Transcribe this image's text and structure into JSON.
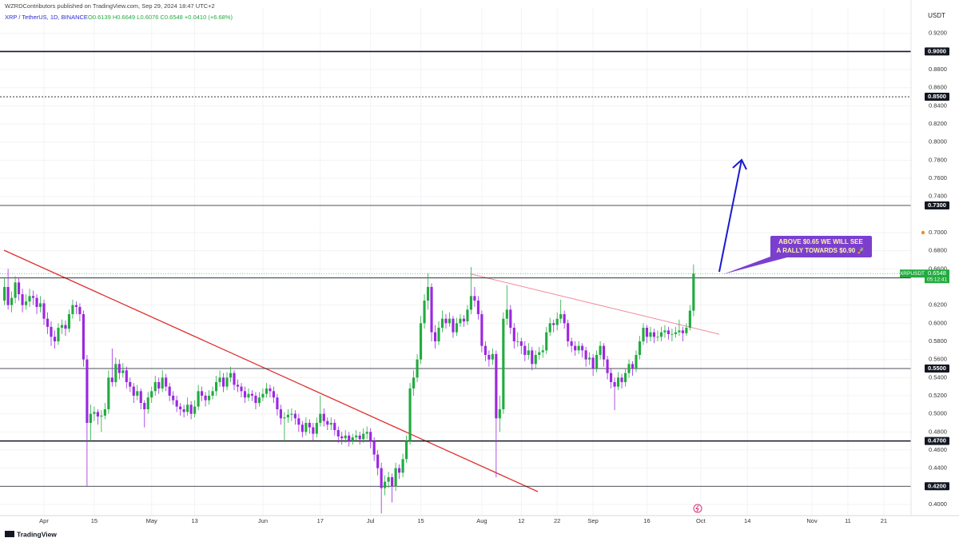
{
  "header": {
    "publisher": "WZRDContributors published on TradingView.com, Sep 29, 2024 18:47 UTC+2",
    "symbol": "XRP / TetherUS, 1D, BINANCE",
    "ohlc": "O0.6139 H0.6649 L0.6076 C0.6548 +0.0410 (+6.68%)"
  },
  "chart_data": {
    "type": "candlestick",
    "y_axis_unit": "USDT",
    "up_color": "#22ab3f",
    "down_color": "#9c27e0",
    "candles": [
      [
        0.625,
        0.65,
        0.62,
        0.64
      ],
      [
        0.64,
        0.66,
        0.615,
        0.62
      ],
      [
        0.62,
        0.635,
        0.612,
        0.628
      ],
      [
        0.628,
        0.652,
        0.622,
        0.645
      ],
      [
        0.645,
        0.65,
        0.625,
        0.632
      ],
      [
        0.632,
        0.638,
        0.612,
        0.62
      ],
      [
        0.62,
        0.632,
        0.615,
        0.624
      ],
      [
        0.624,
        0.638,
        0.618,
        0.63
      ],
      [
        0.63,
        0.636,
        0.62,
        0.628
      ],
      [
        0.628,
        0.632,
        0.61,
        0.618
      ],
      [
        0.618,
        0.63,
        0.612,
        0.622
      ],
      [
        0.622,
        0.626,
        0.598,
        0.605
      ],
      [
        0.605,
        0.612,
        0.588,
        0.596
      ],
      [
        0.596,
        0.602,
        0.575,
        0.585
      ],
      [
        0.585,
        0.592,
        0.572,
        0.58
      ],
      [
        0.58,
        0.6,
        0.576,
        0.595
      ],
      [
        0.595,
        0.604,
        0.588,
        0.598
      ],
      [
        0.598,
        0.603,
        0.586,
        0.594
      ],
      [
        0.594,
        0.615,
        0.59,
        0.61
      ],
      [
        0.61,
        0.626,
        0.605,
        0.62
      ],
      [
        0.62,
        0.624,
        0.61,
        0.618
      ],
      [
        0.618,
        0.622,
        0.602,
        0.61
      ],
      [
        0.61,
        0.614,
        0.552,
        0.56
      ],
      [
        0.56,
        0.565,
        0.42,
        0.49
      ],
      [
        0.49,
        0.51,
        0.47,
        0.5
      ],
      [
        0.5,
        0.508,
        0.492,
        0.502
      ],
      [
        0.502,
        0.505,
        0.488,
        0.497
      ],
      [
        0.497,
        0.504,
        0.48,
        0.498
      ],
      [
        0.498,
        0.512,
        0.494,
        0.505
      ],
      [
        0.505,
        0.548,
        0.5,
        0.54
      ],
      [
        0.54,
        0.572,
        0.53,
        0.535
      ],
      [
        0.535,
        0.562,
        0.53,
        0.555
      ],
      [
        0.555,
        0.56,
        0.538,
        0.545
      ],
      [
        0.545,
        0.556,
        0.54,
        0.548
      ],
      [
        0.548,
        0.552,
        0.528,
        0.535
      ],
      [
        0.535,
        0.54,
        0.524,
        0.53
      ],
      [
        0.53,
        0.534,
        0.512,
        0.52
      ],
      [
        0.52,
        0.532,
        0.515,
        0.525
      ],
      [
        0.525,
        0.528,
        0.505,
        0.512
      ],
      [
        0.512,
        0.515,
        0.485,
        0.505
      ],
      [
        0.505,
        0.524,
        0.5,
        0.518
      ],
      [
        0.518,
        0.53,
        0.512,
        0.525
      ],
      [
        0.525,
        0.542,
        0.52,
        0.535
      ],
      [
        0.535,
        0.54,
        0.522,
        0.528
      ],
      [
        0.528,
        0.548,
        0.524,
        0.54
      ],
      [
        0.54,
        0.544,
        0.525,
        0.53
      ],
      [
        0.53,
        0.534,
        0.514,
        0.52
      ],
      [
        0.52,
        0.525,
        0.51,
        0.515
      ],
      [
        0.515,
        0.52,
        0.502,
        0.508
      ],
      [
        0.508,
        0.512,
        0.498,
        0.505
      ],
      [
        0.505,
        0.51,
        0.496,
        0.502
      ],
      [
        0.502,
        0.518,
        0.498,
        0.51
      ],
      [
        0.51,
        0.514,
        0.494,
        0.5
      ],
      [
        0.5,
        0.515,
        0.496,
        0.508
      ],
      [
        0.508,
        0.532,
        0.504,
        0.525
      ],
      [
        0.525,
        0.53,
        0.514,
        0.52
      ],
      [
        0.52,
        0.524,
        0.508,
        0.515
      ],
      [
        0.515,
        0.526,
        0.51,
        0.52
      ],
      [
        0.52,
        0.53,
        0.516,
        0.525
      ],
      [
        0.525,
        0.542,
        0.52,
        0.535
      ],
      [
        0.535,
        0.548,
        0.53,
        0.54
      ],
      [
        0.54,
        0.545,
        0.524,
        0.53
      ],
      [
        0.53,
        0.546,
        0.526,
        0.54
      ],
      [
        0.54,
        0.552,
        0.535,
        0.545
      ],
      [
        0.545,
        0.548,
        0.526,
        0.532
      ],
      [
        0.532,
        0.538,
        0.524,
        0.53
      ],
      [
        0.53,
        0.534,
        0.518,
        0.525
      ],
      [
        0.525,
        0.53,
        0.512,
        0.518
      ],
      [
        0.518,
        0.528,
        0.514,
        0.522
      ],
      [
        0.522,
        0.526,
        0.514,
        0.52
      ],
      [
        0.52,
        0.524,
        0.505,
        0.512
      ],
      [
        0.512,
        0.524,
        0.508,
        0.518
      ],
      [
        0.518,
        0.528,
        0.514,
        0.522
      ],
      [
        0.522,
        0.534,
        0.518,
        0.528
      ],
      [
        0.528,
        0.532,
        0.518,
        0.525
      ],
      [
        0.525,
        0.53,
        0.512,
        0.518
      ],
      [
        0.518,
        0.522,
        0.498,
        0.505
      ],
      [
        0.505,
        0.51,
        0.488,
        0.495
      ],
      [
        0.495,
        0.502,
        0.47,
        0.496
      ],
      [
        0.496,
        0.505,
        0.49,
        0.499
      ],
      [
        0.499,
        0.506,
        0.492,
        0.5
      ],
      [
        0.5,
        0.504,
        0.488,
        0.495
      ],
      [
        0.495,
        0.5,
        0.48,
        0.488
      ],
      [
        0.488,
        0.492,
        0.474,
        0.48
      ],
      [
        0.48,
        0.496,
        0.476,
        0.49
      ],
      [
        0.49,
        0.494,
        0.478,
        0.485
      ],
      [
        0.485,
        0.49,
        0.47,
        0.478
      ],
      [
        0.478,
        0.496,
        0.474,
        0.49
      ],
      [
        0.49,
        0.52,
        0.486,
        0.5
      ],
      [
        0.5,
        0.506,
        0.486,
        0.492
      ],
      [
        0.492,
        0.496,
        0.482,
        0.488
      ],
      [
        0.488,
        0.496,
        0.482,
        0.49
      ],
      [
        0.49,
        0.494,
        0.476,
        0.482
      ],
      [
        0.482,
        0.486,
        0.468,
        0.475
      ],
      [
        0.475,
        0.48,
        0.466,
        0.473
      ],
      [
        0.473,
        0.482,
        0.468,
        0.476
      ],
      [
        0.476,
        0.48,
        0.464,
        0.47
      ],
      [
        0.47,
        0.478,
        0.466,
        0.474
      ],
      [
        0.474,
        0.482,
        0.47,
        0.476
      ],
      [
        0.476,
        0.48,
        0.466,
        0.472
      ],
      [
        0.472,
        0.484,
        0.468,
        0.478
      ],
      [
        0.478,
        0.486,
        0.472,
        0.48
      ],
      [
        0.48,
        0.484,
        0.462,
        0.47
      ],
      [
        0.47,
        0.474,
        0.448,
        0.455
      ],
      [
        0.455,
        0.46,
        0.432,
        0.44
      ],
      [
        0.44,
        0.446,
        0.39,
        0.418
      ],
      [
        0.418,
        0.432,
        0.41,
        0.425
      ],
      [
        0.425,
        0.436,
        0.418,
        0.43
      ],
      [
        0.43,
        0.434,
        0.402,
        0.42
      ],
      [
        0.42,
        0.446,
        0.415,
        0.44
      ],
      [
        0.44,
        0.444,
        0.428,
        0.435
      ],
      [
        0.435,
        0.456,
        0.43,
        0.45
      ],
      [
        0.45,
        0.476,
        0.446,
        0.47
      ],
      [
        0.47,
        0.534,
        0.466,
        0.528
      ],
      [
        0.528,
        0.548,
        0.52,
        0.54
      ],
      [
        0.54,
        0.566,
        0.535,
        0.56
      ],
      [
        0.56,
        0.608,
        0.555,
        0.6
      ],
      [
        0.6,
        0.632,
        0.594,
        0.625
      ],
      [
        0.625,
        0.655,
        0.615,
        0.64
      ],
      [
        0.64,
        0.644,
        0.58,
        0.59
      ],
      [
        0.59,
        0.598,
        0.572,
        0.58
      ],
      [
        0.58,
        0.602,
        0.576,
        0.595
      ],
      [
        0.595,
        0.614,
        0.59,
        0.605
      ],
      [
        0.605,
        0.61,
        0.594,
        0.6
      ],
      [
        0.6,
        0.612,
        0.596,
        0.605
      ],
      [
        0.605,
        0.608,
        0.584,
        0.59
      ],
      [
        0.59,
        0.606,
        0.586,
        0.6
      ],
      [
        0.6,
        0.61,
        0.596,
        0.605
      ],
      [
        0.605,
        0.609,
        0.596,
        0.602
      ],
      [
        0.602,
        0.62,
        0.598,
        0.615
      ],
      [
        0.615,
        0.662,
        0.61,
        0.63
      ],
      [
        0.63,
        0.64,
        0.618,
        0.625
      ],
      [
        0.625,
        0.63,
        0.604,
        0.61
      ],
      [
        0.61,
        0.614,
        0.568,
        0.575
      ],
      [
        0.575,
        0.58,
        0.558,
        0.565
      ],
      [
        0.565,
        0.57,
        0.552,
        0.56
      ],
      [
        0.56,
        0.572,
        0.554,
        0.566
      ],
      [
        0.566,
        0.57,
        0.43,
        0.495
      ],
      [
        0.495,
        0.52,
        0.48,
        0.505
      ],
      [
        0.505,
        0.612,
        0.5,
        0.605
      ],
      [
        0.605,
        0.642,
        0.598,
        0.615
      ],
      [
        0.615,
        0.62,
        0.588,
        0.595
      ],
      [
        0.595,
        0.6,
        0.572,
        0.58
      ],
      [
        0.58,
        0.59,
        0.574,
        0.58
      ],
      [
        0.58,
        0.584,
        0.566,
        0.575
      ],
      [
        0.575,
        0.58,
        0.558,
        0.565
      ],
      [
        0.565,
        0.578,
        0.56,
        0.57
      ],
      [
        0.57,
        0.574,
        0.548,
        0.555
      ],
      [
        0.555,
        0.57,
        0.55,
        0.565
      ],
      [
        0.565,
        0.574,
        0.56,
        0.568
      ],
      [
        0.568,
        0.576,
        0.562,
        0.57
      ],
      [
        0.57,
        0.596,
        0.566,
        0.59
      ],
      [
        0.59,
        0.606,
        0.586,
        0.6
      ],
      [
        0.6,
        0.604,
        0.59,
        0.598
      ],
      [
        0.598,
        0.612,
        0.592,
        0.605
      ],
      [
        0.605,
        0.626,
        0.6,
        0.61
      ],
      [
        0.61,
        0.614,
        0.594,
        0.6
      ],
      [
        0.6,
        0.604,
        0.574,
        0.58
      ],
      [
        0.58,
        0.584,
        0.568,
        0.575
      ],
      [
        0.575,
        0.58,
        0.564,
        0.57
      ],
      [
        0.57,
        0.58,
        0.566,
        0.575
      ],
      [
        0.575,
        0.578,
        0.562,
        0.57
      ],
      [
        0.57,
        0.574,
        0.552,
        0.56
      ],
      [
        0.56,
        0.568,
        0.554,
        0.562
      ],
      [
        0.562,
        0.566,
        0.542,
        0.55
      ],
      [
        0.55,
        0.57,
        0.546,
        0.565
      ],
      [
        0.565,
        0.58,
        0.56,
        0.575
      ],
      [
        0.575,
        0.578,
        0.552,
        0.56
      ],
      [
        0.56,
        0.564,
        0.538,
        0.545
      ],
      [
        0.545,
        0.55,
        0.528,
        0.535
      ],
      [
        0.535,
        0.54,
        0.504,
        0.53
      ],
      [
        0.53,
        0.546,
        0.526,
        0.54
      ],
      [
        0.54,
        0.544,
        0.528,
        0.535
      ],
      [
        0.535,
        0.55,
        0.53,
        0.545
      ],
      [
        0.545,
        0.56,
        0.54,
        0.555
      ],
      [
        0.555,
        0.558,
        0.542,
        0.55
      ],
      [
        0.55,
        0.57,
        0.546,
        0.565
      ],
      [
        0.565,
        0.586,
        0.56,
        0.58
      ],
      [
        0.58,
        0.6,
        0.576,
        0.595
      ],
      [
        0.595,
        0.598,
        0.578,
        0.585
      ],
      [
        0.585,
        0.596,
        0.58,
        0.59
      ],
      [
        0.59,
        0.594,
        0.578,
        0.585
      ],
      [
        0.585,
        0.592,
        0.58,
        0.585
      ],
      [
        0.585,
        0.596,
        0.58,
        0.59
      ],
      [
        0.59,
        0.598,
        0.584,
        0.592
      ],
      [
        0.592,
        0.596,
        0.582,
        0.588
      ],
      [
        0.588,
        0.594,
        0.58,
        0.588
      ],
      [
        0.588,
        0.596,
        0.584,
        0.59
      ],
      [
        0.59,
        0.604,
        0.586,
        0.592
      ],
      [
        0.592,
        0.596,
        0.58,
        0.589
      ],
      [
        0.589,
        0.6,
        0.586,
        0.595
      ],
      [
        0.595,
        0.62,
        0.592,
        0.6139
      ],
      [
        0.6139,
        0.6649,
        0.6076,
        0.6548
      ]
    ],
    "xlim": [
      -1.25,
      252.6
    ],
    "xticks": [
      {
        "value": 11,
        "label": "Apr"
      },
      {
        "value": 25,
        "label": "15"
      },
      {
        "value": 41,
        "label": "May"
      },
      {
        "value": 53,
        "label": "13"
      },
      {
        "value": 72,
        "label": "Jun"
      },
      {
        "value": 88,
        "label": "17"
      },
      {
        "value": 102,
        "label": "Jul"
      },
      {
        "value": 116,
        "label": "15"
      },
      {
        "value": 133,
        "label": "Aug"
      },
      {
        "value": 144,
        "label": "12"
      },
      {
        "value": 154,
        "label": "22"
      },
      {
        "value": 164,
        "label": "Sep"
      },
      {
        "value": 179,
        "label": "16"
      },
      {
        "value": 194,
        "label": "Oct"
      },
      {
        "value": 207,
        "label": "14"
      },
      {
        "value": 225,
        "label": "Nov"
      },
      {
        "value": 235,
        "label": "11"
      },
      {
        "value": 245,
        "label": "21"
      }
    ],
    "ylim": [
      0.3876,
      0.948
    ],
    "yticks": [
      {
        "value": 0.92,
        "label": "0.9200"
      },
      {
        "value": 0.88,
        "label": "0.8800"
      },
      {
        "value": 0.86,
        "label": "0.8600"
      },
      {
        "value": 0.84,
        "label": "0.8400"
      },
      {
        "value": 0.82,
        "label": "0.8200"
      },
      {
        "value": 0.8,
        "label": "0.8000"
      },
      {
        "value": 0.78,
        "label": "0.7800"
      },
      {
        "value": 0.76,
        "label": "0.7600"
      },
      {
        "value": 0.74,
        "label": "0.7400"
      },
      {
        "value": 0.7,
        "label": "0.7000"
      },
      {
        "value": 0.68,
        "label": "0.6800"
      },
      {
        "value": 0.66,
        "label": "0.6600"
      },
      {
        "value": 0.62,
        "label": "0.6200"
      },
      {
        "value": 0.6,
        "label": "0.6000"
      },
      {
        "value": 0.58,
        "label": "0.5800"
      },
      {
        "value": 0.56,
        "label": "0.5600"
      },
      {
        "value": 0.54,
        "label": "0.5400"
      },
      {
        "value": 0.52,
        "label": "0.5200"
      },
      {
        "value": 0.5,
        "label": "0.5000"
      },
      {
        "value": 0.48,
        "label": "0.4800"
      },
      {
        "value": 0.46,
        "label": "0.4600"
      },
      {
        "value": 0.44,
        "label": "0.4400"
      },
      {
        "value": 0.4,
        "label": "0.4000"
      }
    ],
    "levels": [
      {
        "value": 0.9,
        "label": "0.9000",
        "style": "thick"
      },
      {
        "value": 0.85,
        "label": "0.8500",
        "style": "dotted"
      },
      {
        "value": 0.73,
        "label": "0.7300",
        "style": "thin"
      },
      {
        "value": 0.65,
        "label": "0.6500",
        "style": "thin"
      },
      {
        "value": 0.55,
        "label": "0.5500",
        "style": "thin"
      },
      {
        "value": 0.47,
        "label": "0.4700",
        "style": "thick"
      },
      {
        "value": 0.42,
        "label": "0.4200",
        "style": "thin"
      }
    ],
    "symbol_label": "XRPUSDT",
    "countdown": "05:12:41",
    "annotation": [
      "ABOVE $0.65 WE WILL SEE",
      "A RALLY TOWARDS $0.90 🚀"
    ]
  },
  "footer": {
    "logo": "TradingView"
  }
}
